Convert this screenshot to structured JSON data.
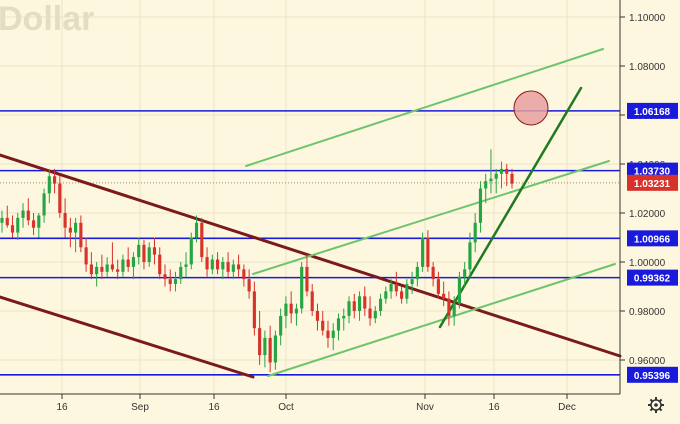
{
  "watermark": "Dollar",
  "colors": {
    "background": "#fdf7df",
    "grid": "#ece3c3",
    "axis_line": "#333333",
    "axis_text": "#333333",
    "level_line": "#1a1adb",
    "trend_dark": "#7a1a1a",
    "channel_green": "#6cc46c",
    "trend_green": "#207a20",
    "candle_up": "#26a544",
    "candle_down": "#d7332b",
    "last_price_bg": "#d7332b",
    "target_circle": "#e8a0a0"
  },
  "price_axis": {
    "ticks": [
      "1.10000",
      "1.08000",
      "1.06000",
      "1.04000",
      "1.02000",
      "1.00000",
      "0.98000",
      "0.96000"
    ],
    "tick_values": [
      1.1,
      1.08,
      1.06,
      1.04,
      1.02,
      1.0,
      0.98,
      0.96
    ],
    "levels": [
      {
        "label": "1.06168",
        "value": 1.06168
      },
      {
        "label": "1.03730",
        "value": 1.0373
      },
      {
        "label": "1.00966",
        "value": 1.00966
      },
      {
        "label": "0.99362",
        "value": 0.99362
      },
      {
        "label": "0.95396",
        "value": 0.95396
      }
    ],
    "last_price": {
      "label": "1.03231",
      "value": 1.03231
    }
  },
  "time_axis": {
    "labels": [
      "16",
      "Sep",
      "16",
      "Oct",
      "Nov",
      "16",
      "Dec"
    ]
  },
  "toolbar": {
    "settings_icon": "gear-icon"
  },
  "chart_data": {
    "type": "candlestick",
    "instrument": "Dollar",
    "xlabel": "",
    "ylabel": "",
    "x_ticks": [
      "16",
      "Sep",
      "16",
      "Oct",
      "Nov",
      "16",
      "Dec"
    ],
    "y_ticks": [
      "1.10000",
      "1.08000",
      "1.06000",
      "1.04000",
      "1.02000",
      "1.00000",
      "0.98000",
      "0.96000"
    ],
    "ylim": [
      0.948,
      1.108
    ],
    "grid": true,
    "ohlc": [
      [
        1.016,
        1.021,
        1.012,
        1.018
      ],
      [
        1.018,
        1.023,
        1.014,
        1.015
      ],
      [
        1.015,
        1.019,
        1.01,
        1.012
      ],
      [
        1.012,
        1.02,
        1.009,
        1.018
      ],
      [
        1.018,
        1.024,
        1.014,
        1.021
      ],
      [
        1.021,
        1.026,
        1.015,
        1.017
      ],
      [
        1.017,
        1.02,
        1.011,
        1.014
      ],
      [
        1.014,
        1.02,
        1.01,
        1.019
      ],
      [
        1.019,
        1.03,
        1.016,
        1.028
      ],
      [
        1.028,
        1.038,
        1.024,
        1.035
      ],
      [
        1.035,
        1.038,
        1.028,
        1.032
      ],
      [
        1.032,
        1.035,
        1.018,
        1.02
      ],
      [
        1.02,
        1.026,
        1.01,
        1.014
      ],
      [
        1.014,
        1.018,
        1.006,
        1.012
      ],
      [
        1.012,
        1.018,
        1.004,
        1.016
      ],
      [
        1.016,
        1.019,
        1.004,
        1.006
      ],
      [
        1.006,
        1.01,
        0.996,
        0.999
      ],
      [
        0.999,
        1.004,
        0.993,
        0.995
      ],
      [
        0.995,
        1.0,
        0.99,
        0.998
      ],
      [
        0.998,
        1.003,
        0.993,
        0.996
      ],
      [
        0.996,
        1.002,
        0.994,
        0.999
      ],
      [
        0.999,
        1.008,
        0.996,
        0.997
      ],
      [
        0.997,
        1.001,
        0.993,
        0.996
      ],
      [
        0.996,
        1.003,
        0.994,
        1.001
      ],
      [
        1.001,
        1.006,
        0.996,
        0.998
      ],
      [
        0.998,
        1.004,
        0.993,
        1.002
      ],
      [
        1.002,
        1.01,
        0.999,
        1.007
      ],
      [
        1.007,
        1.009,
        0.997,
        1.0
      ],
      [
        1.0,
        1.008,
        0.998,
        1.006
      ],
      [
        1.006,
        1.01,
        0.999,
        1.003
      ],
      [
        1.003,
        1.006,
        0.993,
        0.995
      ],
      [
        0.995,
        0.999,
        0.99,
        0.993
      ],
      [
        0.993,
        0.997,
        0.988,
        0.991
      ],
      [
        0.991,
        0.996,
        0.988,
        0.993
      ],
      [
        0.993,
        1.0,
        0.991,
        0.998
      ],
      [
        0.998,
        1.004,
        0.994,
        0.999
      ],
      [
        0.999,
        1.012,
        0.997,
        1.01
      ],
      [
        1.01,
        1.019,
        1.008,
        1.016
      ],
      [
        1.016,
        1.018,
        1.0,
        1.002
      ],
      [
        1.002,
        1.006,
        0.994,
        0.997
      ],
      [
        0.997,
        1.003,
        0.995,
        1.001
      ],
      [
        1.001,
        1.004,
        0.995,
        0.997
      ],
      [
        0.997,
        1.002,
        0.993,
        1.0
      ],
      [
        1.0,
        1.004,
        0.994,
        0.996
      ],
      [
        0.996,
        1.001,
        0.993,
        0.999
      ],
      [
        0.999,
        1.003,
        0.994,
        0.997
      ],
      [
        0.997,
        0.999,
        0.99,
        0.993
      ],
      [
        0.993,
        0.997,
        0.985,
        0.988
      ],
      [
        0.988,
        0.992,
        0.97,
        0.973
      ],
      [
        0.973,
        0.98,
        0.958,
        0.962
      ],
      [
        0.962,
        0.972,
        0.957,
        0.969
      ],
      [
        0.969,
        0.974,
        0.955,
        0.959
      ],
      [
        0.959,
        0.972,
        0.956,
        0.97
      ],
      [
        0.97,
        0.981,
        0.966,
        0.978
      ],
      [
        0.978,
        0.986,
        0.973,
        0.983
      ],
      [
        0.983,
        0.988,
        0.975,
        0.979
      ],
      [
        0.979,
        0.983,
        0.974,
        0.981
      ],
      [
        0.981,
        1.0,
        0.979,
        0.998
      ],
      [
        0.998,
        1.003,
        0.986,
        0.988
      ],
      [
        0.988,
        0.991,
        0.978,
        0.98
      ],
      [
        0.98,
        0.983,
        0.972,
        0.976
      ],
      [
        0.976,
        0.98,
        0.97,
        0.972
      ],
      [
        0.972,
        0.976,
        0.965,
        0.969
      ],
      [
        0.969,
        0.975,
        0.964,
        0.972
      ],
      [
        0.972,
        0.979,
        0.968,
        0.977
      ],
      [
        0.977,
        0.981,
        0.972,
        0.978
      ],
      [
        0.978,
        0.986,
        0.975,
        0.984
      ],
      [
        0.984,
        0.987,
        0.977,
        0.98
      ],
      [
        0.98,
        0.988,
        0.976,
        0.986
      ],
      [
        0.986,
        0.99,
        0.978,
        0.981
      ],
      [
        0.981,
        0.986,
        0.974,
        0.977
      ],
      [
        0.977,
        0.982,
        0.975,
        0.98
      ],
      [
        0.98,
        0.987,
        0.978,
        0.985
      ],
      [
        0.985,
        0.99,
        0.983,
        0.988
      ],
      [
        0.988,
        0.993,
        0.985,
        0.991
      ],
      [
        0.991,
        0.996,
        0.986,
        0.988
      ],
      [
        0.988,
        0.99,
        0.983,
        0.985
      ],
      [
        0.985,
        0.993,
        0.983,
        0.991
      ],
      [
        0.991,
        0.996,
        0.987,
        0.993
      ],
      [
        0.993,
        1.0,
        0.99,
        0.998
      ],
      [
        0.998,
        1.012,
        0.996,
        1.01
      ],
      [
        1.01,
        1.013,
        0.996,
        0.998
      ],
      [
        0.998,
        1.0,
        0.99,
        0.993
      ],
      [
        0.993,
        0.996,
        0.985,
        0.987
      ],
      [
        0.987,
        0.992,
        0.982,
        0.985
      ],
      [
        0.985,
        0.988,
        0.974,
        0.978
      ],
      [
        0.978,
        0.986,
        0.974,
        0.983
      ],
      [
        0.983,
        0.996,
        0.981,
        0.994
      ],
      [
        0.994,
        1.0,
        0.99,
        0.997
      ],
      [
        0.997,
        1.012,
        0.994,
        1.008
      ],
      [
        1.008,
        1.02,
        1.004,
        1.016
      ],
      [
        1.016,
        1.033,
        1.012,
        1.03
      ],
      [
        1.03,
        1.036,
        1.024,
        1.033
      ],
      [
        1.033,
        1.046,
        1.028,
        1.034
      ],
      [
        1.034,
        1.038,
        1.028,
        1.036
      ],
      [
        1.036,
        1.041,
        1.03,
        1.038
      ],
      [
        1.038,
        1.04,
        1.031,
        1.036
      ],
      [
        1.036,
        1.038,
        1.03,
        1.032
      ]
    ],
    "horizontal_levels": [
      1.06168,
      1.0373,
      1.00966,
      0.99362,
      0.95396
    ],
    "last_price": 1.03231
  }
}
